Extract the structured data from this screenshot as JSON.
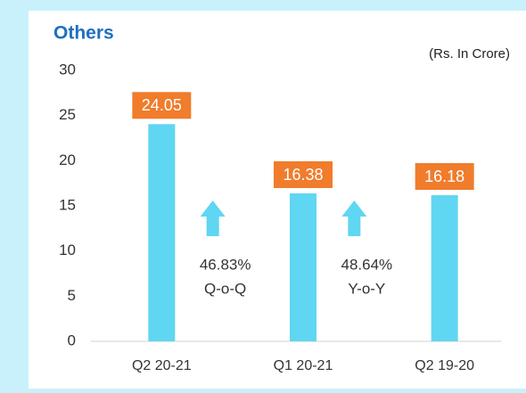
{
  "chart_data": {
    "type": "bar",
    "title": "Others",
    "subtitle": "(Rs. In Crore)",
    "categories": [
      "Q2 20-21",
      "Q1 20-21",
      "Q2 19-20"
    ],
    "values": [
      24.05,
      16.38,
      16.18
    ],
    "color": "#5fd6f2",
    "label_color": "#f07c2c",
    "ylim": [
      0,
      30
    ],
    "yticks": [
      0,
      5,
      10,
      15,
      20,
      25,
      30
    ],
    "annotations": [
      [
        "46.83%",
        "Q-o-Q"
      ],
      [
        "48.64%",
        "Y-o-Y"
      ]
    ]
  }
}
